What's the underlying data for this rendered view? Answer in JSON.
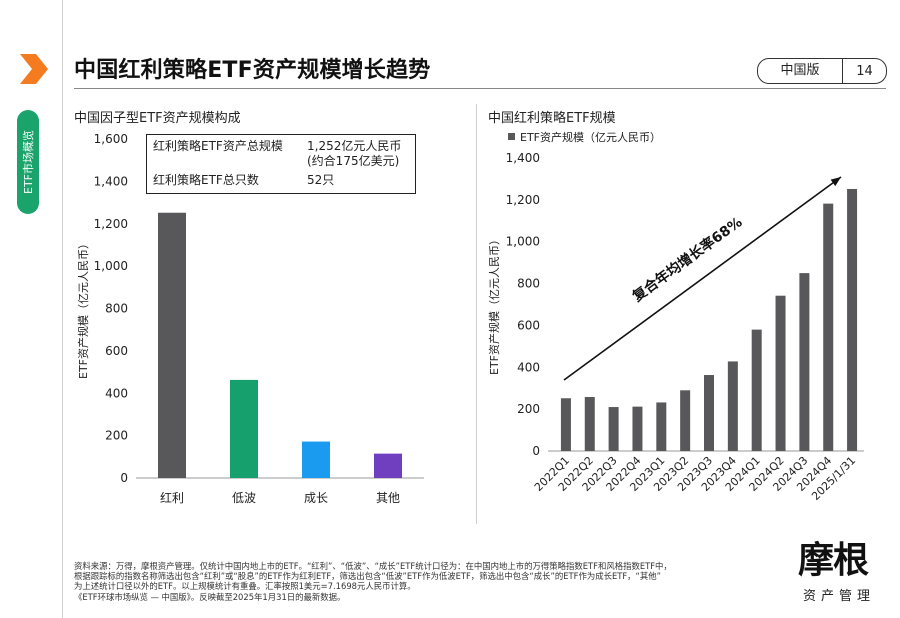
{
  "sidebar": {
    "section_label": "ETF市场概览"
  },
  "header": {
    "title": "中国红利策略ETF资产规模增长趋势",
    "edition_label": "中国版",
    "page_number": "14"
  },
  "left_panel": {
    "title": "中国因子型ETF资产规模构成",
    "info_box": {
      "row1_label": "红利策略ETF资产总规模",
      "row1_value": "1,252亿元人民币",
      "row1_value_line2": "(约合175亿美元)",
      "row2_label": "红利策略ETF总只数",
      "row2_value": "52只"
    }
  },
  "right_panel": {
    "title": "中国红利策略ETF规模",
    "legend_label": "ETF资产规模（亿元人民币）",
    "growth_annotation": "复合年均增长率68%"
  },
  "footnote": {
    "line1": "资料来源：万得，摩根资产管理。仅统计中国内地上市的ETF。“红利”、“低波”、“成长”ETF统计口径为：在中国内地上市的万得策略指数ETF和风格指数ETF中，",
    "line2": "根据跟踪标的指数名称筛选出包含“红利”或“股息”的ETF作为红利ETF，筛选出包含“低波”ETF作为低波ETF，筛选出中包含“成长”的ETF作为成长ETF，“其他”",
    "line3": "为上述统计口径以外的ETF。以上规模统计有重叠。汇率按照1美元=7.1698元人民币计算。",
    "line4": "《ETF环球市场纵览 — 中国版》。反映截至2025年1月31日的最新数据。"
  },
  "logo": {
    "top": "摩根",
    "bottom": "资产管理"
  },
  "colors": {
    "accent_orange": "#f47b20",
    "green": "#1aa36a",
    "bar_gray": "#58585a"
  },
  "chart_data": [
    {
      "type": "bar",
      "title": "中国因子型ETF资产规模构成",
      "ylabel": "ETF资产规模（亿元人民币）",
      "categories": [
        "红利",
        "低波",
        "成长",
        "其他"
      ],
      "values": [
        1252,
        463,
        172,
        115
      ],
      "colors": [
        "#58585a",
        "#15a06e",
        "#1a9bf0",
        "#6f3fbf"
      ],
      "ylim": [
        0,
        1600
      ],
      "yticks": [
        "0",
        "200",
        "400",
        "600",
        "800",
        "1,000",
        "1,200",
        "1,400",
        "1,600"
      ],
      "grid": false
    },
    {
      "type": "bar",
      "title": "中国红利策略ETF规模",
      "ylabel": "ETF资产规模（亿元人民币）",
      "series": [
        {
          "name": "ETF资产规模（亿元人民币）",
          "values": [
            252,
            258,
            210,
            212,
            232,
            290,
            363,
            428,
            580,
            742,
            850,
            1182,
            1252
          ]
        }
      ],
      "categories": [
        "2022Q1",
        "2022Q2",
        "2022Q3",
        "2022Q4",
        "2023Q1",
        "2023Q2",
        "2023Q3",
        "2023Q4",
        "2024Q1",
        "2024Q2",
        "2024Q3",
        "2024Q4",
        "2025/1/31"
      ],
      "ylim": [
        0,
        1400
      ],
      "yticks": [
        "0",
        "200",
        "400",
        "600",
        "800",
        "1,000",
        "1,200",
        "1,400"
      ],
      "color": "#58585a",
      "legend": "top-left",
      "grid": false
    }
  ]
}
